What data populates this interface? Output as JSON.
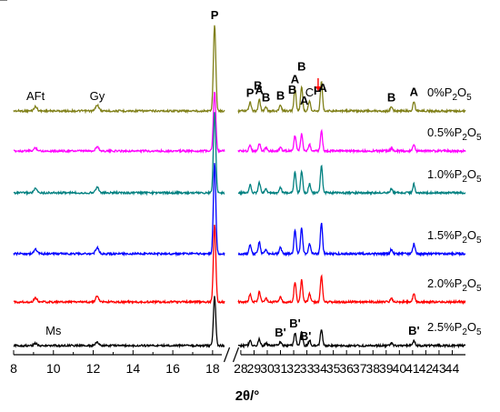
{
  "chart_data": {
    "type": "line",
    "xlabel": "2θ/°",
    "xlim": [
      8,
      45
    ],
    "x_break": [
      18.6,
      27.8
    ],
    "x_ticks": [
      8,
      10,
      12,
      14,
      16,
      18,
      28,
      29,
      30,
      31,
      32,
      33,
      34,
      35,
      36,
      37,
      38,
      39,
      40,
      41,
      42,
      43,
      44
    ],
    "x_tick_labels": [
      "8",
      "10",
      "12",
      "14",
      "16",
      "18",
      "28",
      "29",
      "30",
      "31",
      "32",
      "33",
      "34",
      "35",
      "36",
      "37",
      "38",
      "39",
      "40",
      "41",
      "42",
      "43",
      "44"
    ],
    "ylabel": "",
    "y_axis_visible": false,
    "peaks": [
      {
        "x": 9.1,
        "h": 0.05
      },
      {
        "x": 12.2,
        "h": 0.07
      },
      {
        "x": 18.1,
        "h": 1.0
      },
      {
        "x": 28.7,
        "h": 0.1
      },
      {
        "x": 29.4,
        "h": 0.13
      },
      {
        "x": 29.9,
        "h": 0.05
      },
      {
        "x": 31.0,
        "h": 0.07
      },
      {
        "x": 32.1,
        "h": 0.26
      },
      {
        "x": 32.6,
        "h": 0.28
      },
      {
        "x": 33.2,
        "h": 0.11
      },
      {
        "x": 34.1,
        "h": 0.34
      },
      {
        "x": 39.4,
        "h": 0.05
      },
      {
        "x": 41.1,
        "h": 0.11
      }
    ],
    "series": [
      {
        "name": "0%P2O5",
        "label_main": "0%P",
        "label_sub1": "2",
        "label_mid": "O",
        "label_sub2": "5",
        "color": "#808019",
        "scale": 0.95
      },
      {
        "name": "0.5%P2O5",
        "label_main": "0.5%P",
        "label_sub1": "2",
        "label_mid": "O",
        "label_sub2": "5",
        "color": "#ff00ff",
        "scale": 0.66
      },
      {
        "name": "1.0%P2O5",
        "label_main": "1.0%P",
        "label_sub1": "2",
        "label_mid": "O",
        "label_sub2": "5",
        "color": "#008080",
        "scale": 0.88
      },
      {
        "name": "1.5%P2O5",
        "label_main": "1.5%P",
        "label_sub1": "2",
        "label_mid": "O",
        "label_sub2": "5",
        "color": "#0000ff",
        "scale": 1.0
      },
      {
        "name": "2.0%P2O5",
        "label_main": "2.0%P",
        "label_sub1": "2",
        "label_mid": "O",
        "label_sub2": "5",
        "color": "#ff0000",
        "scale": 0.86
      },
      {
        "name": "2.5%P2O5",
        "label_main": "2.5%P",
        "label_sub1": "2",
        "label_mid": "O",
        "label_sub2": "5",
        "color": "#000000",
        "scale": 0.54
      }
    ],
    "annotations": [
      {
        "text": "AFt",
        "x": 9.1,
        "series": 0,
        "bold": false
      },
      {
        "text": "Gy",
        "x": 12.2,
        "series": 0,
        "bold": false
      },
      {
        "text": "P",
        "x": 18.1,
        "series": 0,
        "bold": true
      },
      {
        "text": "P",
        "x": 28.7,
        "series": 0,
        "bold": true
      },
      {
        "text": "B",
        "x": 29.3,
        "series": 0,
        "bold": true,
        "level": 2
      },
      {
        "text": "A",
        "x": 29.4,
        "series": 0,
        "bold": true
      },
      {
        "text": "B",
        "x": 29.9,
        "series": 0,
        "bold": true
      },
      {
        "text": "B",
        "x": 31.0,
        "series": 0,
        "bold": true
      },
      {
        "text": "B",
        "x": 31.9,
        "series": 0,
        "bold": true,
        "level": 2
      },
      {
        "text": "A",
        "x": 32.1,
        "series": 0,
        "bold": true
      },
      {
        "text": "B",
        "x": 32.6,
        "series": 0,
        "bold": true,
        "level": 2
      },
      {
        "text": "A",
        "x": 32.8,
        "series": 0,
        "bold": true
      },
      {
        "text": "C",
        "x": 33.2,
        "series": 0,
        "bold": false
      },
      {
        "text": "P",
        "x": 33.8,
        "series": 0,
        "bold": true
      },
      {
        "text": "A",
        "x": 34.2,
        "series": 0,
        "bold": true
      },
      {
        "text": "B",
        "x": 39.4,
        "series": 0,
        "bold": true
      },
      {
        "text": "A",
        "x": 41.1,
        "series": 0,
        "bold": true
      },
      {
        "text": "Ms",
        "x": 10.0,
        "series": 5,
        "bold": false
      },
      {
        "text": "B'",
        "x": 31.0,
        "series": 5,
        "bold": true
      },
      {
        "text": "B'",
        "x": 32.1,
        "series": 5,
        "bold": true
      },
      {
        "text": "B'",
        "x": 32.9,
        "series": 5,
        "bold": true
      },
      {
        "text": "B'",
        "x": 41.1,
        "series": 5,
        "bold": true
      }
    ],
    "arrow": {
      "x": 33.85,
      "color": "#ff0000"
    },
    "grid": false,
    "legend": "none"
  }
}
